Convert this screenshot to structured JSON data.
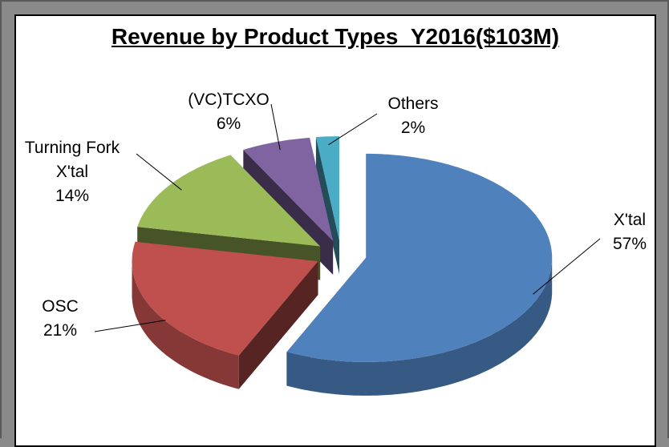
{
  "chart_data": {
    "type": "pie",
    "title": "Revenue by Product Types_Y2016($103M)",
    "categories": [
      "X'tal",
      "OSC",
      "Turning Fork X'tal",
      "(VC)TCXO",
      "Others"
    ],
    "values": [
      57,
      21,
      14,
      6,
      2
    ],
    "value_labels": [
      "57%",
      "21%",
      "14%",
      "6%",
      "2%"
    ],
    "colors": [
      "#4f81bd",
      "#c0504d",
      "#9bbb59",
      "#8064a2",
      "#4bacc6"
    ],
    "three_d": true,
    "exploded": true
  }
}
